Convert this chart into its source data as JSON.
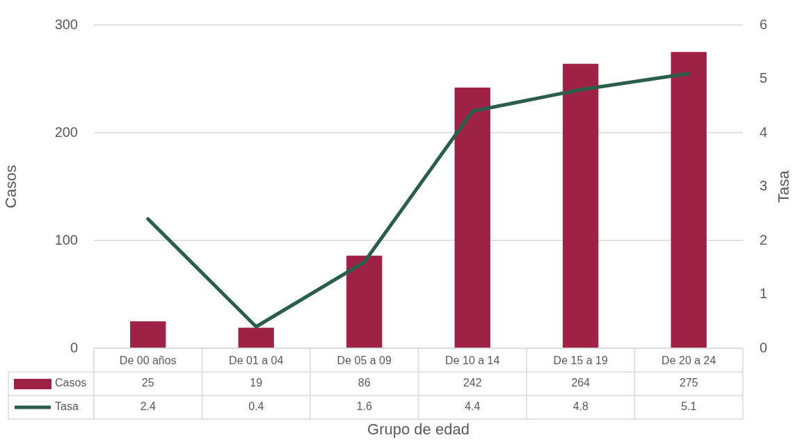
{
  "chart_data": {
    "type": "bar",
    "xlabel": "Grupo de edad",
    "ylabel": "Casos",
    "y2label": "Tasa",
    "categories": [
      "De 00 años",
      "De 01 a 04",
      "De 05 a 09",
      "De 10 a 14",
      "De 15 a 19",
      "De 20 a 24"
    ],
    "series": [
      {
        "name": "Casos",
        "color": "#9e2146",
        "values": [
          25,
          19,
          86,
          242,
          264,
          275
        ]
      },
      {
        "name": "Tasa",
        "type": "line",
        "axis": "y2",
        "color": "#2a5e4a",
        "values": [
          2.4,
          0.4,
          1.6,
          4.4,
          4.8,
          5.1
        ]
      }
    ],
    "ylim": [
      0,
      300
    ],
    "yticks": [
      0,
      100,
      200,
      300
    ],
    "y2lim": [
      0,
      6
    ],
    "y2ticks": [
      0,
      1,
      2,
      3,
      4,
      5,
      6
    ],
    "grid": "y",
    "legend": "bottom",
    "data_labels": true,
    "marker": "none",
    "line_style": "solid"
  }
}
